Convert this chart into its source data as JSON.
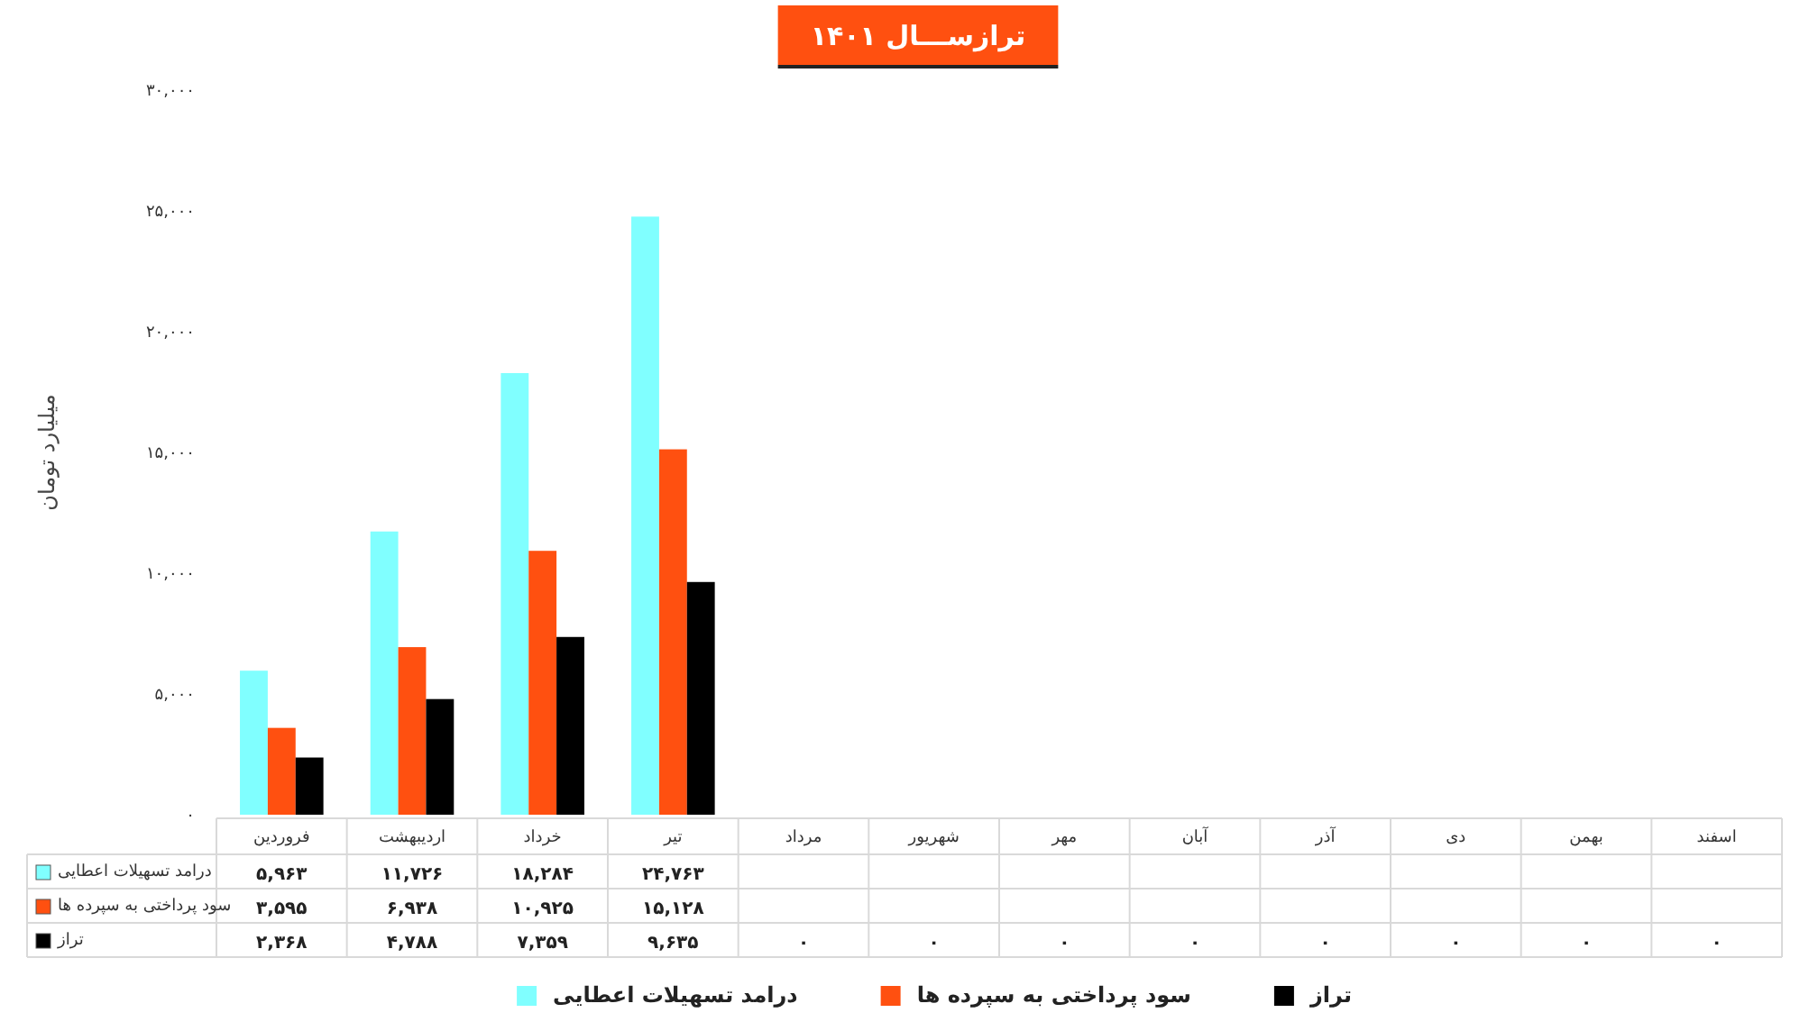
{
  "chart_data": {
    "type": "bar",
    "title": "ترازســـال ۱۴۰۱",
    "ylabel": "میلیارد تومان",
    "categories": [
      "فروردین",
      "اردیبهشت",
      "خرداد",
      "تیر",
      "مرداد",
      "شهریور",
      "مهر",
      "آبان",
      "آذر",
      "دی",
      "بهمن",
      "اسفند"
    ],
    "series": [
      {
        "name": "درامد تسهیلات اعطایی",
        "color": "#80ffff",
        "values": [
          5963,
          11726,
          18284,
          24763,
          null,
          null,
          null,
          null,
          null,
          null,
          null,
          null
        ],
        "value_labels": [
          "۵,۹۶۳",
          "۱۱,۷۲۶",
          "۱۸,۲۸۴",
          "۲۴,۷۶۳",
          null,
          null,
          null,
          null,
          null,
          null,
          null,
          null
        ]
      },
      {
        "name": "سود پرداختی به سپرده ها",
        "color": "#ff5010",
        "values": [
          3595,
          6938,
          10925,
          15128,
          null,
          null,
          null,
          null,
          null,
          null,
          null,
          null
        ],
        "value_labels": [
          "۳,۵۹۵",
          "۶,۹۳۸",
          "۱۰,۹۲۵",
          "۱۵,۱۲۸",
          null,
          null,
          null,
          null,
          null,
          null,
          null,
          null
        ]
      },
      {
        "name": "تراز",
        "color": "#000000",
        "values": [
          2368,
          4788,
          7359,
          9635,
          0,
          0,
          0,
          0,
          0,
          0,
          0,
          0
        ],
        "value_labels": [
          "۲,۳۶۸",
          "۴,۷۸۸",
          "۷,۳۵۹",
          "۹,۶۳۵",
          "۰",
          "۰",
          "۰",
          "۰",
          "۰",
          "۰",
          "۰",
          "۰"
        ]
      }
    ],
    "ylim": [
      0,
      30000
    ],
    "yticks": [
      {
        "value": 0,
        "label": "۰"
      },
      {
        "value": 5000,
        "label": "۵,۰۰۰"
      },
      {
        "value": 10000,
        "label": "۱۰,۰۰۰"
      },
      {
        "value": 15000,
        "label": "۱۵,۰۰۰"
      },
      {
        "value": 20000,
        "label": "۲۰,۰۰۰"
      },
      {
        "value": 25000,
        "label": "۲۵,۰۰۰"
      },
      {
        "value": 30000,
        "label": "۳۰,۰۰۰"
      }
    ],
    "legend": "bottom"
  }
}
